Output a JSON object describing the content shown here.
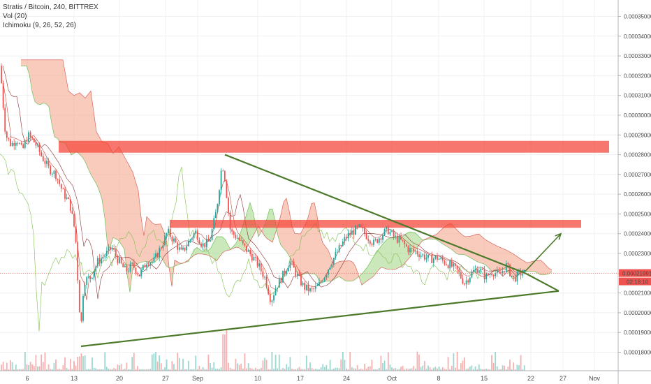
{
  "header": {
    "title": "Stratis / Bitcoin, 240, BITTREX",
    "vol_label": "Vol (20)",
    "ichimoku_label": "Ichimoku (9, 26, 52, 26)"
  },
  "price_tag": {
    "value": "0.00021991",
    "timer": "02:18:10"
  },
  "chart_data": {
    "type": "candlestick",
    "symbol": "Stratis / Bitcoin",
    "interval": "240",
    "exchange": "BITTREX",
    "yaxis_ticks": [
      "0.00035000",
      "0.00034000",
      "0.00033000",
      "0.00032000",
      "0.00031000",
      "0.00030000",
      "0.00029000",
      "0.00028000",
      "0.00027000",
      "0.00026000",
      "0.00025000",
      "0.00024000",
      "0.00023000",
      "0.00022000",
      "0.00021000",
      "0.00020000",
      "0.00019000",
      "0.00018000"
    ],
    "xaxis_ticks": [
      "6",
      "13",
      "20",
      "27",
      "Sep",
      "10",
      "17",
      "24",
      "Oct",
      "8",
      "15",
      "22",
      "27",
      "Nov"
    ],
    "ylim": [
      0.000177,
      0.000353
    ],
    "current_price": 0.00021991,
    "price_path": [
      [
        0,
        0.000325
      ],
      [
        8,
        0.00029
      ],
      [
        16,
        0.000285
      ],
      [
        24,
        0.000288
      ],
      [
        32,
        0.000282
      ],
      [
        40,
        0.00029
      ],
      [
        50,
        0.000286
      ],
      [
        60,
        0.000279
      ],
      [
        70,
        0.000273
      ],
      [
        80,
        0.00027
      ],
      [
        90,
        0.000261
      ],
      [
        100,
        0.000255
      ],
      [
        108,
        0.00024
      ],
      [
        113,
        0.000205
      ],
      [
        116,
        0.000193
      ],
      [
        120,
        0.000216
      ],
      [
        130,
        0.000218
      ],
      [
        140,
        0.000226
      ],
      [
        150,
        0.000229
      ],
      [
        160,
        0.000233
      ],
      [
        170,
        0.000226
      ],
      [
        180,
        0.000221
      ],
      [
        190,
        0.000224
      ],
      [
        200,
        0.000219
      ],
      [
        210,
        0.000226
      ],
      [
        220,
        0.000226
      ],
      [
        230,
        0.000233
      ],
      [
        240,
        0.000241
      ],
      [
        250,
        0.000236
      ],
      [
        260,
        0.00023
      ],
      [
        270,
        0.000236
      ],
      [
        280,
        0.000241
      ],
      [
        290,
        0.000234
      ],
      [
        300,
        0.000236
      ],
      [
        310,
        0.000252
      ],
      [
        318,
        0.000276
      ],
      [
        322,
        0.000268
      ],
      [
        330,
        0.000241
      ],
      [
        340,
        0.000238
      ],
      [
        350,
        0.000233
      ],
      [
        360,
        0.000229
      ],
      [
        370,
        0.000224
      ],
      [
        380,
        0.000217
      ],
      [
        388,
        0.000206
      ],
      [
        395,
        0.000213
      ],
      [
        405,
        0.000219
      ],
      [
        415,
        0.000226
      ],
      [
        425,
        0.000219
      ],
      [
        435,
        0.000213
      ],
      [
        445,
        0.000211
      ],
      [
        455,
        0.000213
      ],
      [
        465,
        0.000219
      ],
      [
        475,
        0.000226
      ],
      [
        485,
        0.000232
      ],
      [
        495,
        0.000238
      ],
      [
        505,
        0.000241
      ],
      [
        515,
        0.000243
      ],
      [
        525,
        0.000239
      ],
      [
        535,
        0.000235
      ],
      [
        545,
        0.000239
      ],
      [
        555,
        0.000242
      ],
      [
        565,
        0.000238
      ],
      [
        575,
        0.000236
      ],
      [
        585,
        0.000232
      ],
      [
        595,
        0.000231
      ],
      [
        605,
        0.000229
      ],
      [
        615,
        0.000227
      ],
      [
        625,
        0.000228
      ],
      [
        635,
        0.000226
      ],
      [
        645,
        0.000224
      ],
      [
        655,
        0.000221
      ],
      [
        665,
        0.000215
      ],
      [
        675,
        0.00022
      ],
      [
        685,
        0.000223
      ],
      [
        695,
        0.000218
      ],
      [
        705,
        0.000221
      ],
      [
        715,
        0.000219
      ],
      [
        725,
        0.000224
      ],
      [
        735,
        0.000217
      ],
      [
        745,
        0.00022
      ],
      [
        752,
        0.00022
      ]
    ],
    "annotations": {
      "resistance_zones": [
        {
          "x_from": 84,
          "x_to": 872,
          "y_from": 0.000281,
          "y_to": 0.000287
        },
        {
          "x_from": 243,
          "x_to": 832,
          "y_from": 0.000243,
          "y_to": 0.000247
        }
      ],
      "triangle": {
        "upper": [
          [
            322,
            0.00028
          ],
          [
            752,
            0.00022
          ]
        ],
        "lower": [
          [
            116,
            0.000183
          ],
          [
            800,
            0.000211
          ]
        ],
        "apex": [
          800,
          0.000211
        ]
      },
      "breakout_arrow": [
        [
          752,
          0.000221
        ],
        [
          803,
          0.00024
        ]
      ]
    },
    "grid": true,
    "legend": "top-left"
  },
  "colors": {
    "bull": "#26a69a",
    "bear": "#ef5350",
    "zone": "#f44336",
    "trendline": "#4c7a2a",
    "cloud_bear": "#f5a98f",
    "cloud_bull": "#a8d98c",
    "price_tag_bg": "#ef5350",
    "grid": "#eef0f3"
  }
}
